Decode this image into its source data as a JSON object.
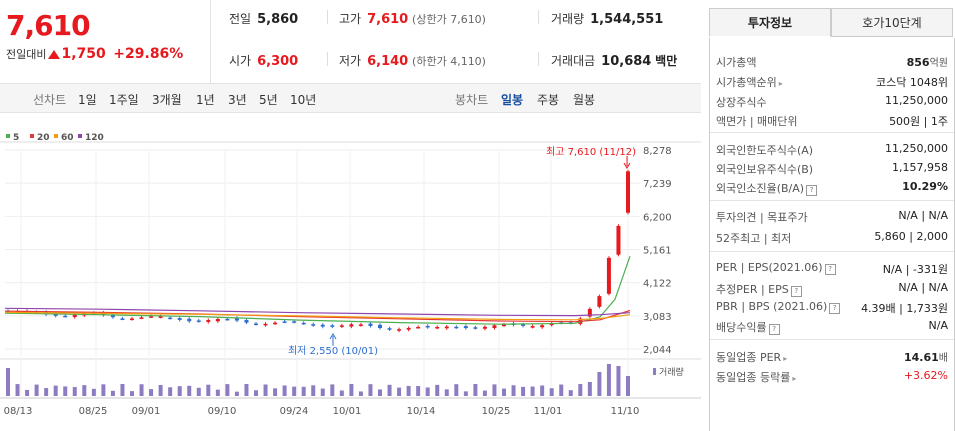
{
  "quote": {
    "price": "7,610",
    "change_label": "전일대비",
    "change_value": "1,750",
    "change_rate": "+29.86%"
  },
  "summary": {
    "prev_close_label": "전일",
    "prev_close": "5,860",
    "high_label": "고가",
    "high": "7,610",
    "upper_limit": "(상한가 7,610)",
    "volume_label": "거래량",
    "volume": "1,544,551",
    "open_label": "시가",
    "open": "6,300",
    "low_label": "저가",
    "low": "6,140",
    "lower_limit": "(하한가 4,110)",
    "amount_label": "거래대금",
    "amount": "10,684",
    "amount_unit": "백만"
  },
  "toolbar": {
    "line_label": "선차트",
    "periods": [
      "1일",
      "1주일",
      "3개월",
      "1년",
      "3년",
      "5년",
      "10년"
    ],
    "candle_label": "봉차트",
    "candles": [
      "일봉",
      "주봉",
      "월봉"
    ]
  },
  "chart_data": {
    "type": "candlestick",
    "legend": [
      {
        "name": "5",
        "color": "#4caf50"
      },
      {
        "name": "20",
        "color": "#e53935"
      },
      {
        "name": "60",
        "color": "#f39c12"
      },
      {
        "name": "120",
        "color": "#8e44ad"
      }
    ],
    "y_ticks": [
      "8,278",
      "7,239",
      "6,200",
      "5,161",
      "4,122",
      "3,083",
      "2,044"
    ],
    "x_ticks": [
      "08/13",
      "08/25",
      "09/01",
      "09/10",
      "09/24",
      "10/01",
      "10/14",
      "10/25",
      "11/01",
      "11/10"
    ],
    "ylim": [
      2044,
      8278
    ],
    "annotation_high": "최고 7,610 (11/12)",
    "annotation_low": "최저 2,550 (10/01)",
    "volume_label": "거래량",
    "up_color": "#e5191e",
    "down_color": "#2f6fd0"
  },
  "tabs": {
    "active": "투자정보",
    "inactive": "호가10단계"
  },
  "info": [
    {
      "label": "시가총액",
      "value": "856",
      "unit": "억원",
      "bold": true
    },
    {
      "label": "시가총액순위",
      "value": "코스닥 1048위",
      "arrow": true
    },
    {
      "label": "상장주식수",
      "value": "11,250,000"
    },
    {
      "label": "액면가 | 매매단위",
      "value": "500원 | 1주"
    },
    {
      "label": "외국인한도주식수(A)",
      "value": "11,250,000"
    },
    {
      "label": "외국인보유주식수(B)",
      "value": "1,157,958"
    },
    {
      "label": "외국인소진율(B/A)",
      "value": "10.29%",
      "bold": true,
      "q": true
    },
    {
      "label": "투자의견 | 목표주가",
      "value": "N/A | N/A"
    },
    {
      "label": "52주최고 | 최저",
      "value": "5,860 | 2,000"
    },
    {
      "label": "PER | EPS(2021.06)",
      "value": "N/A | -331원",
      "q": true
    },
    {
      "label": "추정PER | EPS",
      "value": "N/A | N/A",
      "q": true
    },
    {
      "label": "PBR | BPS (2021.06)",
      "value": "4.39배 | 1,733원",
      "q": true
    },
    {
      "label": "배당수익률",
      "value": "N/A",
      "q": true
    },
    {
      "label": "동일업종 PER",
      "value": "14.61",
      "unit": "배",
      "bold": true,
      "arrow": true
    },
    {
      "label": "동일업종 등락률",
      "value": "+3.62%",
      "red": true,
      "arrow": true
    }
  ]
}
